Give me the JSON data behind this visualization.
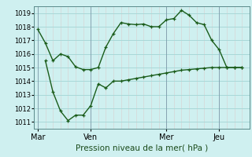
{
  "xlabel": "Pression niveau de la mer( hPa )",
  "bg_color": "#cff0f0",
  "grid_color": "#a8d8d8",
  "line_color": "#1a5c1a",
  "vline_color": "#7a9aaa",
  "ylim": [
    1010.5,
    1019.5
  ],
  "yticks": [
    1011,
    1012,
    1013,
    1014,
    1015,
    1016,
    1017,
    1018,
    1019
  ],
  "xtick_labels": [
    "Mar",
    "Ven",
    "Mer",
    "Jeu"
  ],
  "xtick_positions": [
    0,
    7,
    17,
    24
  ],
  "vline_positions": [
    0,
    7,
    17,
    24
  ],
  "xlim": [
    -0.5,
    28.0
  ],
  "line1_x": [
    0,
    1,
    2,
    3,
    4,
    5,
    6,
    7,
    8,
    9,
    10,
    11,
    12,
    13,
    14,
    15,
    16,
    17,
    18,
    19,
    20,
    21,
    22,
    23,
    24,
    25,
    26,
    27
  ],
  "line1_y": [
    1017.8,
    1016.8,
    1015.5,
    1016.0,
    1015.8,
    1015.05,
    1014.85,
    1014.85,
    1015.0,
    1016.5,
    1017.5,
    1018.3,
    1018.2,
    1018.15,
    1018.2,
    1018.0,
    1018.0,
    1018.5,
    1018.6,
    1019.2,
    1018.85,
    1018.3,
    1018.15,
    1017.0,
    1016.3,
    1015.0,
    1015.0,
    1015.0
  ],
  "line2_x": [
    1,
    2,
    3,
    4,
    5,
    6,
    7,
    8,
    9,
    10,
    11,
    12,
    13,
    14,
    15,
    16,
    17,
    18,
    19,
    20,
    21,
    22,
    23,
    24,
    25,
    26,
    27
  ],
  "line2_y": [
    1015.5,
    1013.2,
    1011.8,
    1011.1,
    1011.5,
    1011.5,
    1012.2,
    1013.8,
    1013.5,
    1014.0,
    1014.0,
    1014.1,
    1014.2,
    1014.3,
    1014.4,
    1014.5,
    1014.6,
    1014.7,
    1014.8,
    1014.85,
    1014.9,
    1014.95,
    1015.0,
    1015.0,
    1015.0,
    1015.0,
    1015.0
  ]
}
